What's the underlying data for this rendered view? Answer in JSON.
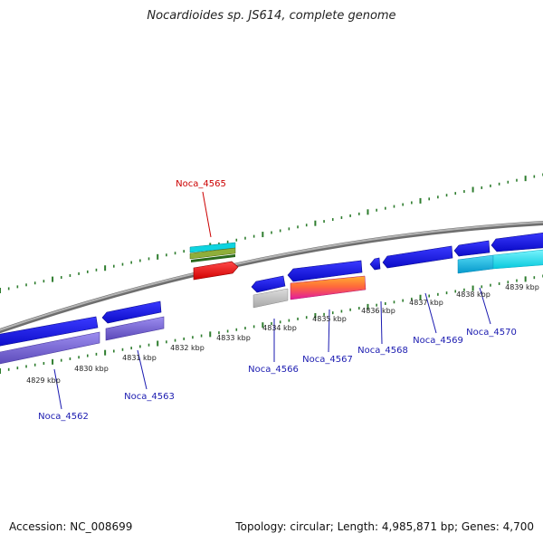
{
  "title": "Nocardioides sp. JS614, complete genome",
  "footer": {
    "accession": "Accession: NC_008699",
    "topology": "Topology: circular; Length: 4,985,871 bp; Genes: 4,700"
  },
  "colors": {
    "backbone": "#8a8a8a",
    "tick": "#2e7d2e",
    "gene_blue": "#1a1ae6",
    "gene_purple": "#7b68d6",
    "highlight_label": "#cc0000",
    "normal_label": "#1a1ab0",
    "cyan": "#12e6f0",
    "red": "#ff1a1a"
  },
  "position_labels": [
    "4829 kbp",
    "4830 kbp",
    "4831 kbp",
    "4832 kbp",
    "4833 kbp",
    "4834 kbp",
    "4835 kbp",
    "4836 kbp",
    "4837 kbp",
    "4838 kbp",
    "4839 kbp"
  ],
  "genes": [
    {
      "name": "Noca_4562",
      "highlight": false
    },
    {
      "name": "Noca_4563",
      "highlight": false
    },
    {
      "name": "Noca_4565",
      "highlight": true
    },
    {
      "name": "Noca_4566",
      "highlight": false
    },
    {
      "name": "Noca_4567",
      "highlight": false
    },
    {
      "name": "Noca_4568",
      "highlight": false
    },
    {
      "name": "Noca_4569",
      "highlight": false
    },
    {
      "name": "Noca_4570",
      "highlight": false
    }
  ]
}
